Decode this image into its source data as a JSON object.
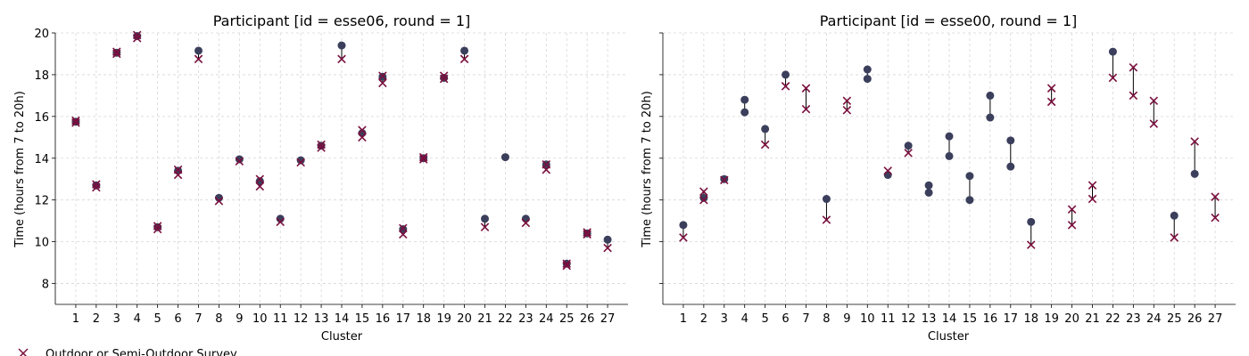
{
  "chart_data": [
    {
      "type": "scatter",
      "title": "Participant [id = esse06, round = 1]",
      "xlabel": "Cluster",
      "ylabel": "Time (hours from 7 to 20h)",
      "ylim": [
        7,
        20
      ],
      "yticks": [
        8,
        10,
        12,
        14,
        16,
        18,
        20
      ],
      "categories": [
        "1",
        "2",
        "3",
        "4",
        "5",
        "6",
        "7",
        "8",
        "9",
        "10",
        "11",
        "12",
        "13",
        "14",
        "15",
        "16",
        "17",
        "18",
        "19",
        "20",
        "21",
        "22",
        "23",
        "24",
        "25",
        "26",
        "27"
      ],
      "grid": true,
      "legend": "bottom-left",
      "series": [
        {
          "name": "",
          "marker": "circle",
          "color": "#3b3f5c",
          "values": [
            15.75,
            12.7,
            19.05,
            19.85,
            10.7,
            13.4,
            19.15,
            12.1,
            13.95,
            12.9,
            11.1,
            13.9,
            14.6,
            19.4,
            15.2,
            17.9,
            10.6,
            14.0,
            17.85,
            19.15,
            11.1,
            14.05,
            11.1,
            13.7,
            8.95,
            10.4,
            10.1
          ]
        },
        {
          "name": "Outdoor or Semi-Outdoor Survey",
          "marker": "x",
          "color": "#7a0f3e",
          "points": [
            {
              "x": 1,
              "values": [
                15.7,
                15.8
              ]
            },
            {
              "x": 2,
              "values": [
                12.6,
                12.75
              ]
            },
            {
              "x": 3,
              "values": [
                19.0,
                19.1
              ]
            },
            {
              "x": 4,
              "values": [
                19.75,
                19.9
              ]
            },
            {
              "x": 5,
              "values": [
                10.6,
                10.75
              ]
            },
            {
              "x": 6,
              "values": [
                13.2,
                13.45
              ]
            },
            {
              "x": 7,
              "values": [
                18.75
              ]
            },
            {
              "x": 8,
              "values": [
                11.95
              ]
            },
            {
              "x": 9,
              "values": [
                13.85
              ]
            },
            {
              "x": 10,
              "values": [
                12.65,
                13.0
              ]
            },
            {
              "x": 11,
              "values": [
                10.95
              ]
            },
            {
              "x": 12,
              "values": [
                13.8
              ]
            },
            {
              "x": 13,
              "values": [
                14.5,
                14.65
              ]
            },
            {
              "x": 14,
              "values": [
                18.75
              ]
            },
            {
              "x": 15,
              "values": [
                15.0,
                15.35
              ]
            },
            {
              "x": 16,
              "values": [
                17.6,
                17.95
              ]
            },
            {
              "x": 17,
              "values": [
                10.35,
                10.65
              ]
            },
            {
              "x": 18,
              "values": [
                13.95,
                14.05
              ]
            },
            {
              "x": 19,
              "values": [
                17.8,
                17.95
              ]
            },
            {
              "x": 20,
              "values": [
                18.75
              ]
            },
            {
              "x": 21,
              "values": [
                10.7
              ]
            },
            {
              "x": 23,
              "values": [
                10.9
              ]
            },
            {
              "x": 24,
              "values": [
                13.45,
                13.7
              ]
            },
            {
              "x": 25,
              "values": [
                8.85,
                8.95
              ]
            },
            {
              "x": 26,
              "values": [
                10.35,
                10.45
              ]
            },
            {
              "x": 27,
              "values": [
                9.7
              ]
            }
          ]
        }
      ]
    },
    {
      "type": "scatter",
      "title": "Participant [id = esse00, round = 1]",
      "xlabel": "Cluster",
      "ylabel": "Time (hours from 7 to 20h)",
      "ylim": [
        7,
        20
      ],
      "yticks": [
        8,
        10,
        12,
        14,
        16,
        18,
        20
      ],
      "categories": [
        "1",
        "2",
        "3",
        "4",
        "5",
        "6",
        "7",
        "8",
        "9",
        "10",
        "11",
        "12",
        "13",
        "14",
        "15",
        "16",
        "17",
        "18",
        "19",
        "20",
        "21",
        "22",
        "23",
        "24",
        "25",
        "26",
        "27"
      ],
      "grid": true,
      "series": [
        {
          "name": "",
          "marker": "circle",
          "color": "#3b3f5c",
          "points": [
            {
              "x": 1,
              "values": [
                10.8
              ]
            },
            {
              "x": 2,
              "values": [
                12.1
              ]
            },
            {
              "x": 3,
              "values": [
                13.0
              ]
            },
            {
              "x": 4,
              "values": [
                16.2,
                16.8
              ]
            },
            {
              "x": 5,
              "values": [
                15.4
              ]
            },
            {
              "x": 6,
              "values": [
                18.0
              ]
            },
            {
              "x": 8,
              "values": [
                12.05
              ]
            },
            {
              "x": 10,
              "values": [
                17.8,
                18.25
              ]
            },
            {
              "x": 11,
              "values": [
                13.2
              ]
            },
            {
              "x": 12,
              "values": [
                14.6
              ]
            },
            {
              "x": 13,
              "values": [
                12.35,
                12.7
              ]
            },
            {
              "x": 14,
              "values": [
                14.1,
                15.05
              ]
            },
            {
              "x": 15,
              "values": [
                12.0,
                13.15
              ]
            },
            {
              "x": 16,
              "values": [
                15.95,
                17.0
              ]
            },
            {
              "x": 17,
              "values": [
                13.6,
                14.85
              ]
            },
            {
              "x": 18,
              "values": [
                10.95
              ]
            },
            {
              "x": 22,
              "values": [
                19.1
              ]
            },
            {
              "x": 25,
              "values": [
                11.25
              ]
            },
            {
              "x": 26,
              "values": [
                13.25
              ]
            }
          ]
        },
        {
          "name": "",
          "marker": "x",
          "color": "#7a0f3e",
          "points": [
            {
              "x": 1,
              "values": [
                10.2
              ]
            },
            {
              "x": 2,
              "values": [
                12.0,
                12.4
              ]
            },
            {
              "x": 3,
              "values": [
                12.95
              ]
            },
            {
              "x": 5,
              "values": [
                14.65
              ]
            },
            {
              "x": 6,
              "values": [
                17.45
              ]
            },
            {
              "x": 7,
              "values": [
                16.35,
                17.35
              ]
            },
            {
              "x": 8,
              "values": [
                11.05
              ]
            },
            {
              "x": 9,
              "values": [
                16.3,
                16.75
              ]
            },
            {
              "x": 11,
              "values": [
                13.4
              ]
            },
            {
              "x": 12,
              "values": [
                14.25
              ]
            },
            {
              "x": 18,
              "values": [
                9.85
              ]
            },
            {
              "x": 19,
              "values": [
                16.7,
                17.35
              ]
            },
            {
              "x": 20,
              "values": [
                10.8,
                11.55
              ]
            },
            {
              "x": 21,
              "values": [
                12.05,
                12.7
              ]
            },
            {
              "x": 22,
              "values": [
                17.85
              ]
            },
            {
              "x": 23,
              "values": [
                17.0,
                18.35
              ]
            },
            {
              "x": 24,
              "values": [
                15.65,
                16.75
              ]
            },
            {
              "x": 25,
              "values": [
                10.2
              ]
            },
            {
              "x": 26,
              "values": [
                14.8
              ]
            },
            {
              "x": 27,
              "values": [
                11.15,
                12.15
              ]
            }
          ]
        }
      ]
    }
  ]
}
